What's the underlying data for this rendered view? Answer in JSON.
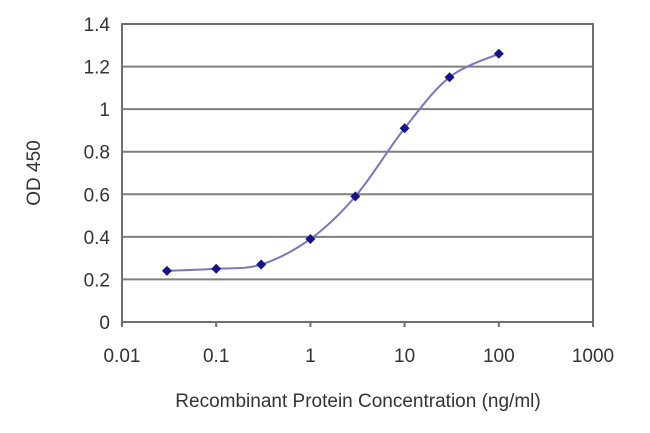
{
  "chart_data": {
    "type": "line",
    "title": "",
    "xlabel": "Recombinant Protein Concentration (ng/ml)",
    "ylabel": "OD 450",
    "xscale": "log",
    "xlim": [
      0.01,
      1000
    ],
    "ylim": [
      0,
      1.4
    ],
    "x_ticks": [
      0.01,
      0.1,
      1,
      10,
      100,
      1000
    ],
    "x_tick_labels": [
      "0.01",
      "0.1",
      "1",
      "10",
      "100",
      "1000"
    ],
    "y_ticks": [
      0,
      0.2,
      0.4,
      0.6,
      0.8,
      1,
      1.2,
      1.4
    ],
    "y_tick_labels": [
      "0",
      "0.2",
      "0.4",
      "0.6",
      "0.8",
      "1",
      "1.2",
      "1.4"
    ],
    "grid": {
      "horizontal": true,
      "vertical": false
    },
    "legend": null,
    "series": [
      {
        "name": "OD 450",
        "color": "#1a1a8c",
        "marker": "diamond",
        "x": [
          0.03,
          0.1,
          0.3,
          1,
          3,
          10,
          30,
          100
        ],
        "values": [
          0.24,
          0.25,
          0.27,
          0.39,
          0.59,
          0.91,
          1.15,
          1.26
        ]
      }
    ]
  },
  "colors": {
    "gridline": "#7f7f7f",
    "frame": "#6e6e6e",
    "line": "#7777bb",
    "marker": "#14148a"
  }
}
